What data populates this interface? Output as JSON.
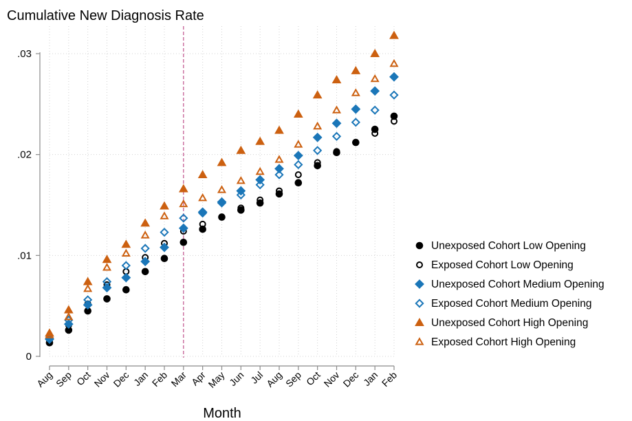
{
  "chart_data": {
    "type": "scatter",
    "title": "Cumulative New Diagnosis Rate",
    "xlabel": "Month",
    "ylabel": "",
    "categories": [
      "Aug",
      "Sep",
      "Oct",
      "Nov",
      "Dec",
      "Jan",
      "Feb",
      "Mar",
      "Apr",
      "May",
      "Jun",
      "Jul",
      "Aug",
      "Sep",
      "Oct",
      "Nov",
      "Dec",
      "Jan",
      "Feb"
    ],
    "ylim": [
      0,
      0.031
    ],
    "yticks": [
      {
        "value": 0,
        "label": "0"
      },
      {
        "value": 0.01,
        "label": ".01"
      },
      {
        "value": 0.02,
        "label": ".02"
      },
      {
        "value": 0.03,
        "label": ".03"
      }
    ],
    "grid": "dotted, both axes",
    "reference_line": {
      "category_index": 7,
      "color": "#c0508a",
      "style": "dashed"
    },
    "legend_position": "right",
    "series": [
      {
        "name": "Unexposed Cohort Low Opening",
        "marker": "filled-circle",
        "color": "#000000",
        "values": [
          0.00135,
          0.0026,
          0.0045,
          0.0057,
          0.0066,
          0.0084,
          0.0097,
          0.0113,
          0.0126,
          0.0138,
          0.0145,
          0.0152,
          0.0161,
          0.0172,
          0.0189,
          0.0202,
          0.0212,
          0.0225,
          0.0238
        ]
      },
      {
        "name": "Exposed Cohort Low Opening",
        "marker": "hollow-circle",
        "color": "#000000",
        "values": [
          0.0016,
          0.0031,
          0.0052,
          0.0071,
          0.0084,
          0.0098,
          0.0112,
          0.0124,
          0.0131,
          0.0138,
          0.0147,
          0.0155,
          0.0164,
          0.018,
          0.0192,
          0.0203,
          0.0212,
          0.0221,
          0.0233
        ]
      },
      {
        "name": "Unexposed Cohort Medium Opening",
        "marker": "filled-diamond",
        "color": "#1a76b8",
        "values": [
          0.0017,
          0.0032,
          0.0051,
          0.0068,
          0.0078,
          0.0094,
          0.0108,
          0.0127,
          0.0143,
          0.0153,
          0.0164,
          0.0175,
          0.0186,
          0.0199,
          0.0217,
          0.0231,
          0.0245,
          0.0263,
          0.0277
        ]
      },
      {
        "name": "Exposed Cohort Medium Opening",
        "marker": "hollow-diamond",
        "color": "#1a76b8",
        "values": [
          0.0018,
          0.0036,
          0.0056,
          0.0074,
          0.009,
          0.0107,
          0.0123,
          0.0137,
          0.0142,
          0.0152,
          0.016,
          0.017,
          0.018,
          0.019,
          0.0204,
          0.0218,
          0.0232,
          0.0244,
          0.0259
        ]
      },
      {
        "name": "Unexposed Cohort High Opening",
        "marker": "filled-triangle",
        "color": "#cc6010",
        "values": [
          0.0023,
          0.0046,
          0.0074,
          0.0096,
          0.0111,
          0.0132,
          0.0149,
          0.0166,
          0.018,
          0.0192,
          0.0204,
          0.0213,
          0.0224,
          0.024,
          0.0259,
          0.0274,
          0.0283,
          0.03,
          0.0318
        ]
      },
      {
        "name": "Exposed Cohort High Opening",
        "marker": "hollow-triangle",
        "color": "#cc6010",
        "values": [
          0.0021,
          0.0039,
          0.0067,
          0.0088,
          0.0102,
          0.012,
          0.0139,
          0.0151,
          0.0157,
          0.0165,
          0.0174,
          0.0183,
          0.0195,
          0.021,
          0.0228,
          0.0244,
          0.0261,
          0.0275,
          0.029
        ]
      }
    ]
  }
}
